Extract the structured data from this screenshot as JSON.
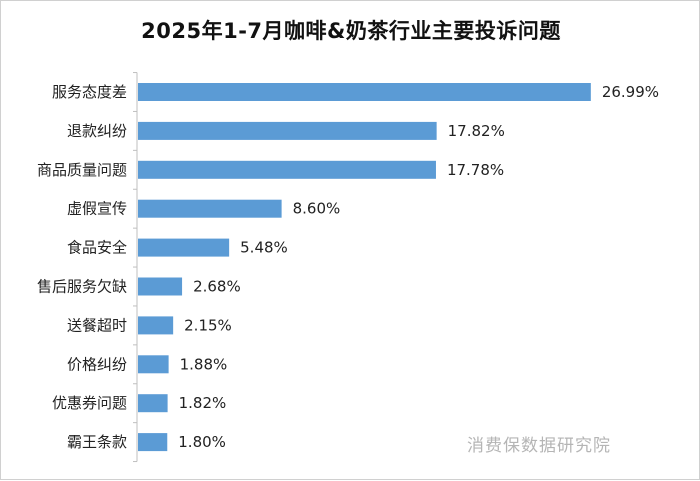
{
  "chart_data": {
    "type": "bar",
    "orientation": "horizontal",
    "title": "2025年1-7月咖啡&奶茶行业主要投诉问题",
    "categories": [
      "服务态度差",
      "退款纠纷",
      "商品质量问题",
      "虚假宣传",
      "食品安全",
      "售后服务欠缺",
      "送餐超时",
      "价格纠纷",
      "优惠券问题",
      "霸王条款"
    ],
    "values": [
      26.99,
      17.82,
      17.78,
      8.6,
      5.48,
      2.68,
      2.15,
      1.88,
      1.82,
      1.8
    ],
    "value_labels": [
      "26.99%",
      "17.82%",
      "17.78%",
      "8.60%",
      "5.48%",
      "2.68%",
      "2.15%",
      "1.88%",
      "1.82%",
      "1.80%"
    ],
    "unit": "%",
    "xlim": [
      0,
      27
    ],
    "grid": false,
    "legend": "none",
    "bar_color": "#5b9bd5",
    "axis_color": "#bfbfbf"
  },
  "watermark": "消费保数据研究院"
}
